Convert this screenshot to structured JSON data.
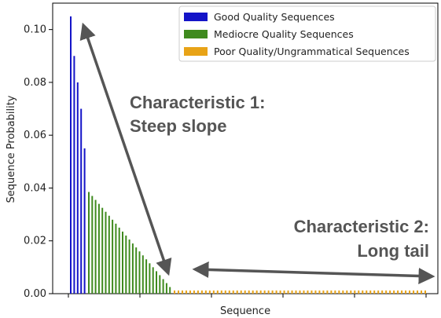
{
  "chart_data": {
    "type": "bar",
    "xlabel": "Sequence",
    "ylabel": "Sequence Probability",
    "ylim": [
      0,
      0.11
    ],
    "yticks": [
      0.0,
      0.02,
      0.04,
      0.06,
      0.08,
      0.1
    ],
    "ytick_labels": [
      "0.00",
      "0.02",
      "0.04",
      "0.06",
      "0.08",
      "0.10"
    ],
    "xtick_labels_shown": false,
    "grid": false,
    "legend_position": "top-right",
    "series": [
      {
        "name": "Good Quality Sequences",
        "color": "#1414c8",
        "values": [
          0.105,
          0.09,
          0.08,
          0.07,
          0.055
        ]
      },
      {
        "name": "Mediocre Quality Sequences",
        "color": "#3f8a1e",
        "values": [
          0.0385,
          0.037,
          0.0355,
          0.034,
          0.0325,
          0.031,
          0.0295,
          0.028,
          0.0265,
          0.025,
          0.0235,
          0.022,
          0.0205,
          0.019,
          0.0175,
          0.016,
          0.0145,
          0.013,
          0.0115,
          0.01,
          0.0085,
          0.007,
          0.0055,
          0.004,
          0.0025
        ]
      },
      {
        "name": "Poor Quality/Ungrammatical Sequences",
        "color": "#e8a317",
        "count": 65,
        "value": 0.0012
      }
    ],
    "annotations": [
      {
        "line1": "Characteristic 1:",
        "line2": "Steep slope"
      },
      {
        "line1": "Characteristic 2:",
        "line2": "Long tail"
      }
    ]
  }
}
